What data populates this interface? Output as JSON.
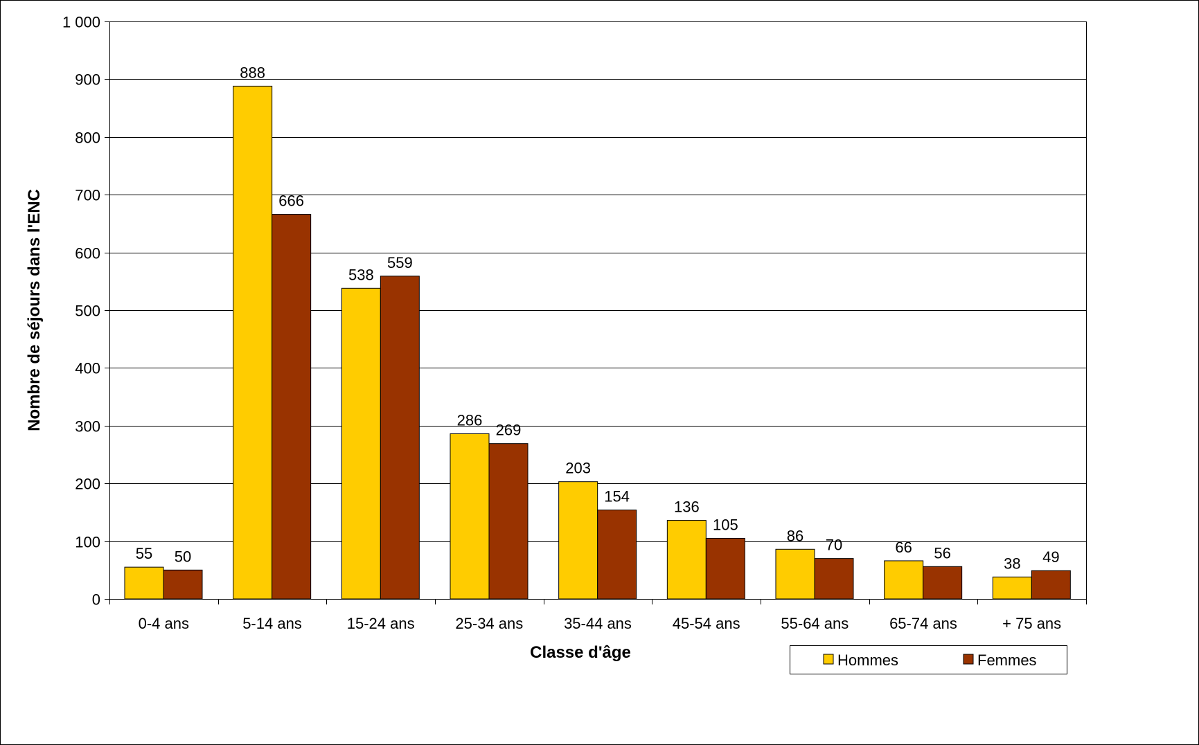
{
  "chart_data": {
    "type": "bar",
    "title": "",
    "xlabel": "Classe d'âge",
    "ylabel": "Nombre de séjours dans l'ENC",
    "categories": [
      "0-4 ans",
      "5-14 ans",
      "15-24 ans",
      "25-34 ans",
      "35-44 ans",
      "45-54 ans",
      "55-64 ans",
      "65-74 ans",
      "+ 75 ans"
    ],
    "series": [
      {
        "name": "Hommes",
        "color": "#FFCC00",
        "values": [
          55,
          888,
          538,
          286,
          203,
          136,
          86,
          66,
          38
        ]
      },
      {
        "name": "Femmes",
        "color": "#993300",
        "values": [
          50,
          666,
          559,
          269,
          154,
          105,
          70,
          56,
          49
        ]
      }
    ],
    "ylim": [
      0,
      1000
    ],
    "yticks": [
      0,
      100,
      200,
      300,
      400,
      500,
      600,
      700,
      800,
      900,
      1000
    ],
    "ytick_labels": [
      "0",
      "100",
      "200",
      "300",
      "400",
      "500",
      "600",
      "700",
      "800",
      "900",
      "1 000"
    ],
    "grid": true,
    "legend_position": "bottom-right",
    "data_labels": true
  }
}
